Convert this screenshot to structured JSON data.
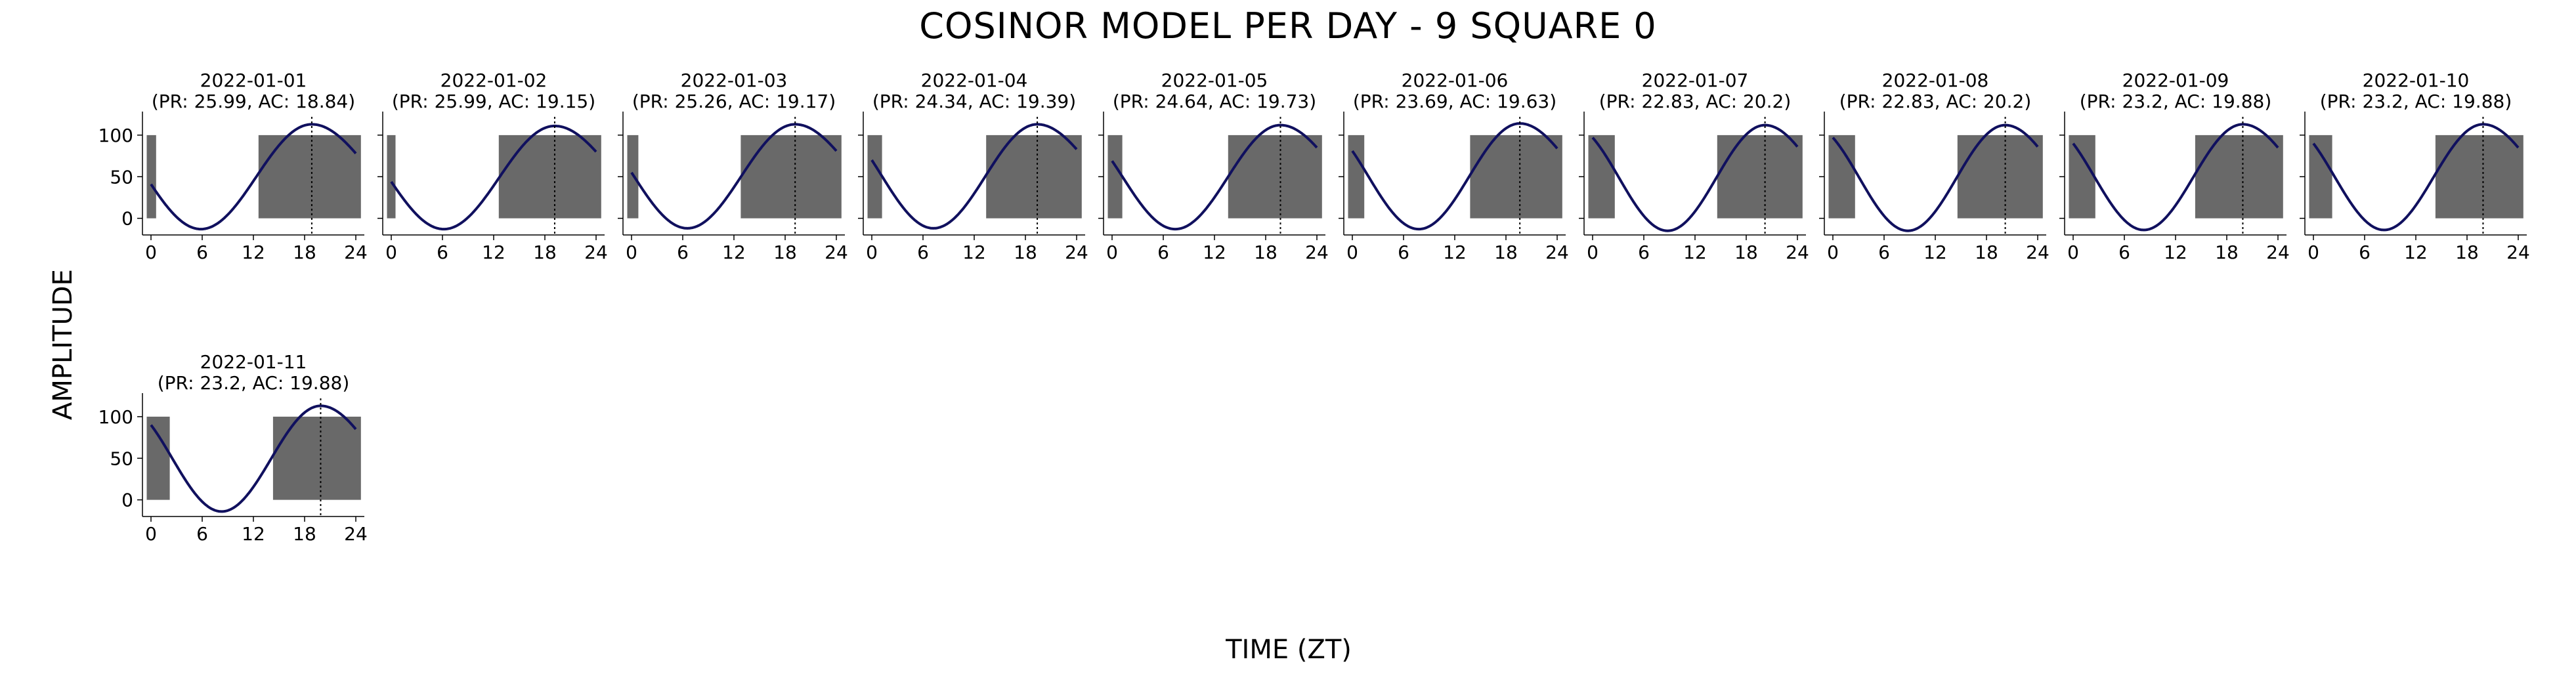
{
  "title": "COSINOR MODEL PER DAY - 9 SQUARE 0",
  "xlabel": "TIME (ZT)",
  "ylabel": "AMPLITUDE",
  "colors": {
    "curve": "#10105e",
    "bar": "#696969",
    "axis": "#000000"
  },
  "chart_data": {
    "type": "line",
    "title": "COSINOR MODEL PER DAY - 9 SQUARE 0",
    "xlabel": "TIME (ZT)",
    "ylabel": "AMPLITUDE",
    "xlim": [
      -1,
      25
    ],
    "ylim": [
      -20,
      122
    ],
    "xticks": [
      0,
      6,
      12,
      18,
      24
    ],
    "yticks": [
      0,
      50,
      100
    ],
    "grid": false,
    "legend": "none",
    "panels": [
      {
        "date": "2022-01-01",
        "subtitle": "(PR: 25.99, AC: 18.84)",
        "period": 25.99,
        "acrophase": 18.84,
        "curve_start": 41,
        "curve_end": 78,
        "peak": 113,
        "trough": -13,
        "active_blocks": [
          [
            -0.5,
            0.6
          ],
          [
            12.6,
            24.6
          ]
        ]
      },
      {
        "date": "2022-01-02",
        "subtitle": "(PR: 25.99, AC: 19.15)",
        "period": 25.99,
        "acrophase": 19.15,
        "curve_start": 44,
        "curve_end": 80,
        "peak": 111,
        "trough": -13,
        "active_blocks": [
          [
            -0.5,
            0.5
          ],
          [
            12.6,
            24.6
          ]
        ]
      },
      {
        "date": "2022-01-03",
        "subtitle": "(PR: 25.26, AC: 19.17)",
        "period": 25.26,
        "acrophase": 19.17,
        "curve_start": 55,
        "curve_end": 81,
        "peak": 113,
        "trough": -12,
        "active_blocks": [
          [
            -0.5,
            0.8
          ],
          [
            12.8,
            24.6
          ]
        ]
      },
      {
        "date": "2022-01-04",
        "subtitle": "(PR: 24.34, AC: 19.39)",
        "period": 24.34,
        "acrophase": 19.39,
        "curve_start": 70,
        "curve_end": 83,
        "peak": 113,
        "trough": -12,
        "active_blocks": [
          [
            -0.5,
            1.2
          ],
          [
            13.4,
            24.6
          ]
        ]
      },
      {
        "date": "2022-01-05",
        "subtitle": "(PR: 24.64, AC: 19.73)",
        "period": 24.64,
        "acrophase": 19.73,
        "curve_start": 69,
        "curve_end": 85,
        "peak": 112,
        "trough": -13,
        "active_blocks": [
          [
            -0.5,
            1.2
          ],
          [
            13.6,
            24.6
          ]
        ]
      },
      {
        "date": "2022-01-06",
        "subtitle": "(PR: 23.69, AC: 19.63)",
        "period": 23.69,
        "acrophase": 19.63,
        "curve_start": 81,
        "curve_end": 84,
        "peak": 114,
        "trough": -13,
        "active_blocks": [
          [
            -0.5,
            1.4
          ],
          [
            13.8,
            24.6
          ]
        ]
      },
      {
        "date": "2022-01-07",
        "subtitle": "(PR: 22.83, AC: 20.2)",
        "period": 22.83,
        "acrophase": 20.2,
        "curve_start": 97,
        "curve_end": 86,
        "peak": 112,
        "trough": -15,
        "active_blocks": [
          [
            -0.5,
            2.6
          ],
          [
            14.6,
            24.6
          ]
        ]
      },
      {
        "date": "2022-01-08",
        "subtitle": "(PR: 22.83, AC: 20.2)",
        "period": 22.83,
        "acrophase": 20.2,
        "curve_start": 97,
        "curve_end": 86,
        "peak": 112,
        "trough": -15,
        "active_blocks": [
          [
            -0.5,
            2.6
          ],
          [
            14.6,
            24.6
          ]
        ]
      },
      {
        "date": "2022-01-09",
        "subtitle": "(PR: 23.2, AC: 19.88)",
        "period": 23.2,
        "acrophase": 19.88,
        "curve_start": 90,
        "curve_end": 85,
        "peak": 113,
        "trough": -14,
        "active_blocks": [
          [
            -0.5,
            2.6
          ],
          [
            14.3,
            24.6
          ]
        ]
      },
      {
        "date": "2022-01-10",
        "subtitle": "(PR: 23.2, AC: 19.88)",
        "period": 23.2,
        "acrophase": 19.88,
        "curve_start": 90,
        "curve_end": 85,
        "peak": 113,
        "trough": -14,
        "active_blocks": [
          [
            -0.5,
            2.2
          ],
          [
            14.3,
            24.6
          ]
        ]
      },
      {
        "date": "2022-01-11",
        "subtitle": "(PR: 23.2, AC: 19.88)",
        "period": 23.2,
        "acrophase": 19.88,
        "curve_start": 90,
        "curve_end": 85,
        "peak": 113,
        "trough": -14,
        "active_blocks": [
          [
            -0.5,
            2.2
          ],
          [
            14.3,
            24.6
          ]
        ]
      }
    ]
  }
}
